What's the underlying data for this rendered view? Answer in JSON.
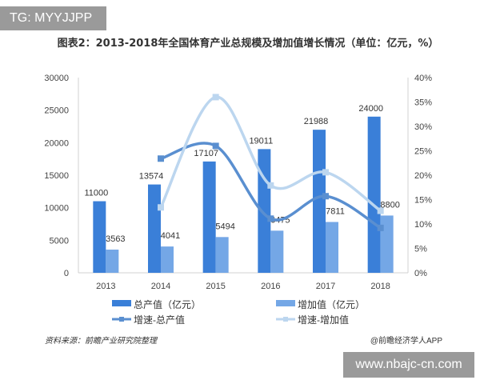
{
  "overlay_tag": "TG: MYYJJPP",
  "site_badge": "www.nbajc-cn.com",
  "source": "资料来源：前瞻产业研究院整理",
  "credit": "@前瞻经济学人APP",
  "colors": {
    "total": "#3a7fd8",
    "added": "#74a7e6",
    "growth_total": "#5a8fd0",
    "growth_added": "#bcd6ef"
  },
  "chart_data": {
    "type": "bar+line",
    "title": "图表2：2013-2018年全国体育产业总规模及增加值增长情况（单位：亿元，%）",
    "categories": [
      "2013",
      "2014",
      "2015",
      "2016",
      "2017",
      "2018"
    ],
    "ylim": [
      0,
      30000
    ],
    "y_ticks": [
      "0",
      "5000",
      "10000",
      "15000",
      "20000",
      "25000",
      "30000"
    ],
    "y2lim": [
      0,
      40
    ],
    "y2_ticks": [
      "0%",
      "5%",
      "10%",
      "15%",
      "20%",
      "25%",
      "30%",
      "35%",
      "40%"
    ],
    "series": [
      {
        "name": "总产值（亿元）",
        "kind": "bar",
        "axis": "left",
        "values": [
          11000,
          13574,
          17107,
          19011,
          21988,
          24000
        ]
      },
      {
        "name": "增加值（亿元）",
        "kind": "bar",
        "axis": "left",
        "values": [
          3563,
          4041,
          5494,
          6475,
          7811,
          8800
        ]
      },
      {
        "name": "增速-总产值",
        "kind": "line",
        "axis": "right",
        "values": [
          null,
          23.4,
          26.0,
          11.1,
          15.7,
          9.2
        ]
      },
      {
        "name": "增速-增加值",
        "kind": "line",
        "axis": "right",
        "values": [
          null,
          13.4,
          36.0,
          17.9,
          20.6,
          12.7
        ]
      }
    ],
    "legend": "bottom",
    "grid": false
  }
}
